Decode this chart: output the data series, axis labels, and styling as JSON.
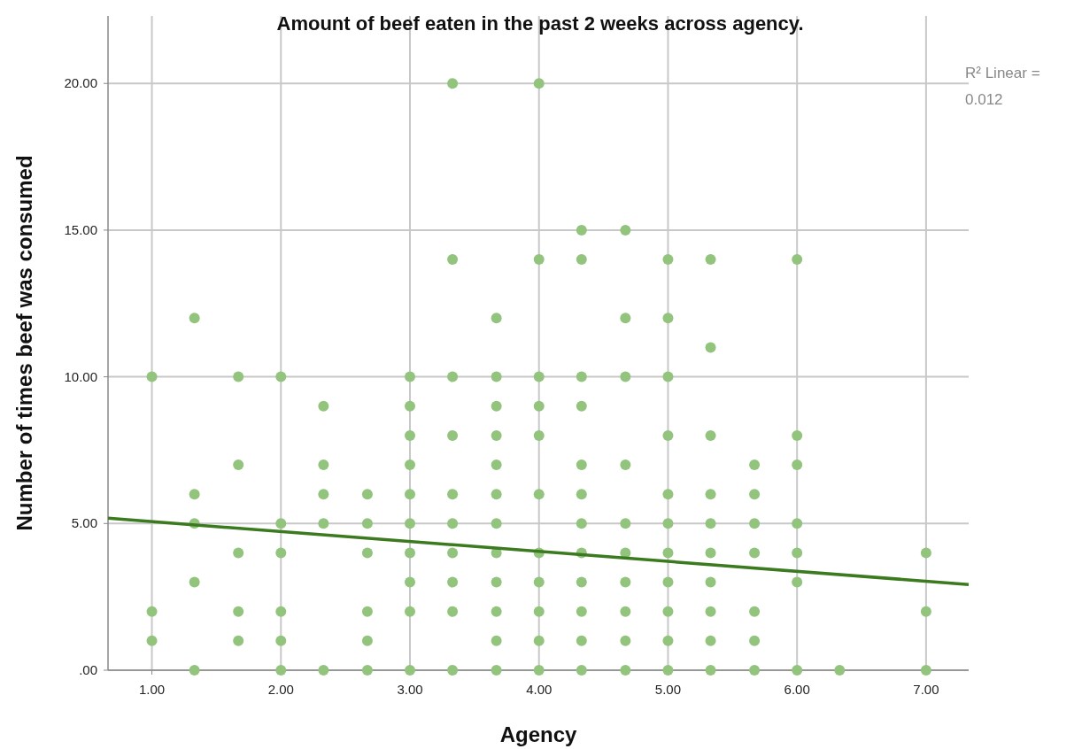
{
  "chart_data": {
    "type": "scatter",
    "title": "Amount of beef eaten in the past 2 weeks across agency.",
    "xlabel": "Agency",
    "ylabel": "Number of times beef was consumed",
    "annotations": [
      "R² Linear = 0.012"
    ],
    "xlim": [
      0.66,
      7.33
    ],
    "ylim": [
      0,
      22.3
    ],
    "xticks": [
      {
        "value": 1,
        "label": "1.00"
      },
      {
        "value": 2,
        "label": "2.00"
      },
      {
        "value": 3,
        "label": "3.00"
      },
      {
        "value": 4,
        "label": "4.00"
      },
      {
        "value": 5,
        "label": "5.00"
      },
      {
        "value": 6,
        "label": "6.00"
      },
      {
        "value": 7,
        "label": "7.00"
      }
    ],
    "yticks": [
      {
        "value": 0,
        "label": ".00"
      },
      {
        "value": 5,
        "label": "5.00"
      },
      {
        "value": 10,
        "label": "10.00"
      },
      {
        "value": 15,
        "label": "15.00"
      },
      {
        "value": 20,
        "label": "20.00"
      }
    ],
    "grid": true,
    "marker": "circle",
    "series": [
      {
        "color": "#92c47d",
        "x": [
          1,
          1,
          1,
          1.33,
          1.33,
          1.33,
          1.33,
          1.33,
          1.67,
          1.67,
          1.67,
          1.67,
          1.67,
          2,
          2,
          2,
          2,
          2,
          2,
          2.33,
          2.33,
          2.33,
          2.33,
          2.33,
          2.67,
          2.67,
          2.67,
          2.67,
          2.67,
          2.67,
          3,
          3,
          3,
          3,
          3,
          3,
          3,
          3,
          3,
          3,
          3.33,
          3.33,
          3.33,
          3.33,
          3.33,
          3.33,
          3.33,
          3.33,
          3.33,
          3.33,
          3.67,
          3.67,
          3.67,
          3.67,
          3.67,
          3.67,
          3.67,
          3.67,
          3.67,
          3.67,
          3.67,
          3.67,
          4,
          4,
          4,
          4,
          4,
          4,
          4,
          4,
          4,
          4,
          4,
          4.33,
          4.33,
          4.33,
          4.33,
          4.33,
          4.33,
          4.33,
          4.33,
          4.33,
          4.33,
          4.33,
          4.33,
          4.67,
          4.67,
          4.67,
          4.67,
          4.67,
          4.67,
          4.67,
          4.67,
          4.67,
          4.67,
          5,
          5,
          5,
          5,
          5,
          5,
          5,
          5,
          5,
          5,
          5,
          5.33,
          5.33,
          5.33,
          5.33,
          5.33,
          5.33,
          5.33,
          5.33,
          5.33,
          5.33,
          5.67,
          5.67,
          5.67,
          5.67,
          5.67,
          5.67,
          5.67,
          6,
          6,
          6,
          6,
          6,
          6,
          6,
          6.33,
          7,
          7,
          7
        ],
        "values": [
          10,
          2,
          1,
          12,
          6,
          5,
          3,
          0,
          10,
          7,
          4,
          2,
          1,
          10,
          5,
          4,
          2,
          1,
          0,
          9,
          7,
          6,
          5,
          0,
          6,
          5,
          4,
          2,
          1,
          0,
          10,
          9,
          8,
          7,
          6,
          5,
          4,
          3,
          2,
          0,
          20,
          14,
          10,
          8,
          6,
          5,
          4,
          3,
          2,
          0,
          12,
          10,
          9,
          8,
          7,
          6,
          5,
          4,
          3,
          2,
          1,
          0,
          20,
          14,
          10,
          9,
          8,
          6,
          4,
          3,
          2,
          1,
          0,
          15,
          14,
          10,
          9,
          7,
          6,
          5,
          4,
          3,
          2,
          1,
          0,
          15,
          12,
          10,
          7,
          5,
          4,
          3,
          2,
          1,
          0,
          14,
          12,
          10,
          8,
          6,
          5,
          4,
          3,
          2,
          1,
          0,
          14,
          11,
          8,
          6,
          5,
          4,
          3,
          2,
          1,
          0,
          7,
          6,
          5,
          4,
          2,
          1,
          0,
          14,
          8,
          7,
          5,
          4,
          3,
          0,
          0,
          4,
          2,
          0
        ]
      },
      {
        "type": "line",
        "color": "#3b7a1e",
        "line_style": "solid",
        "marker": "none",
        "x": [
          0.66,
          7.33
        ],
        "values": [
          5.18,
          2.92
        ]
      }
    ]
  }
}
